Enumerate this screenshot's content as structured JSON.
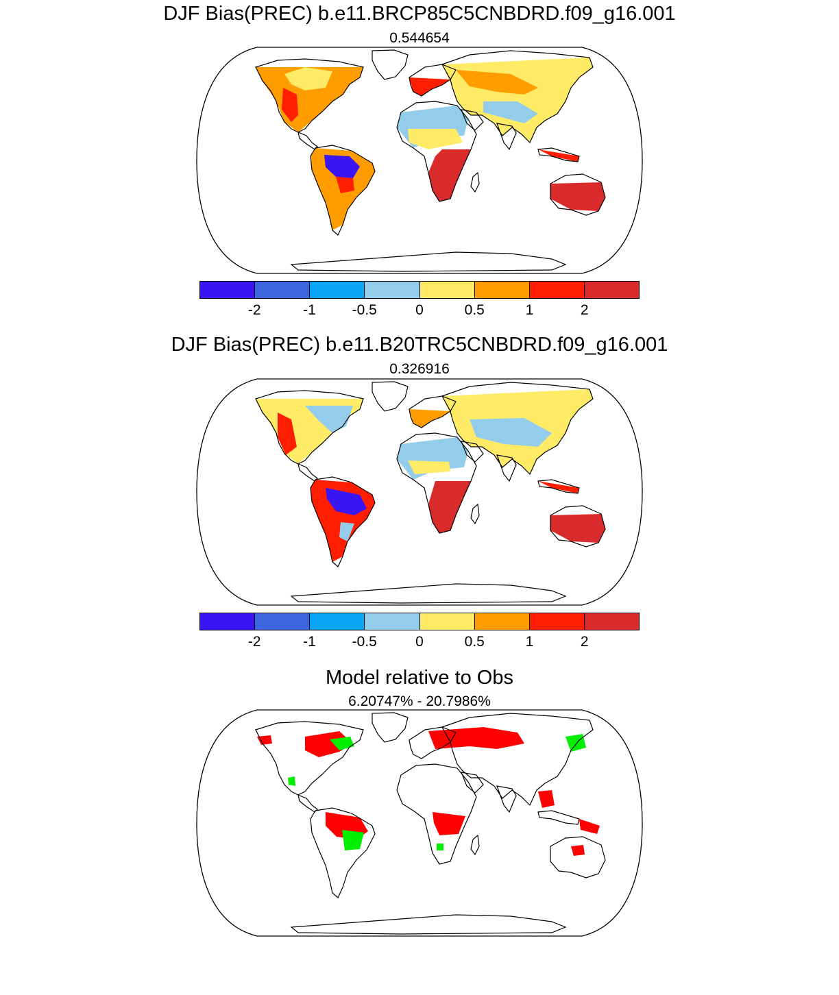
{
  "panels": [
    {
      "title": "DJF Bias(PREC) b.e11.BRCP85C5CNBDRD.f09_g16.001",
      "subtitle": "0.544654"
    },
    {
      "title": "DJF Bias(PREC) b.e11.B20TRC5CNBDRD.f09_g16.001",
      "subtitle": "0.326916"
    },
    {
      "title": "Model relative to Obs",
      "subtitle": "6.20747% - 20.7986%"
    }
  ],
  "colorbar": {
    "colors": [
      "#3b16f5",
      "#3d67e0",
      "#0aa5f5",
      "#94cdeb",
      "#ffeb66",
      "#ff9c00",
      "#ff1e00",
      "#d92b2b"
    ],
    "tick_labels": [
      "-2",
      "-1",
      "-0.5",
      "0",
      "0.5",
      "1",
      "2"
    ]
  },
  "significance_colors": {
    "worse": "#ff0000",
    "better": "#00ee00"
  }
}
